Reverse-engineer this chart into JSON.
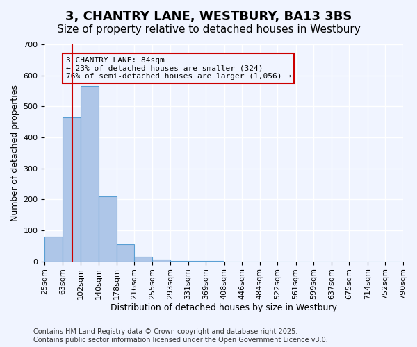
{
  "title": "3, CHANTRY LANE, WESTBURY, BA13 3BS",
  "subtitle": "Size of property relative to detached houses in Westbury",
  "xlabel": "Distribution of detached houses by size in Westbury",
  "ylabel": "Number of detached properties",
  "bar_color": "#aec6e8",
  "bar_edge_color": "#5a9fd4",
  "bin_edges": [
    25,
    63,
    102,
    140,
    178,
    216,
    255,
    293,
    331,
    369,
    408,
    446,
    484,
    522,
    561,
    599,
    637,
    675,
    714,
    752,
    790
  ],
  "bin_labels": [
    "25sqm",
    "63sqm",
    "102sqm",
    "140sqm",
    "178sqm",
    "216sqm",
    "255sqm",
    "293sqm",
    "331sqm",
    "369sqm",
    "408sqm",
    "446sqm",
    "484sqm",
    "522sqm",
    "561sqm",
    "599sqm",
    "637sqm",
    "675sqm",
    "714sqm",
    "752sqm",
    "790sqm"
  ],
  "bar_heights": [
    80,
    465,
    565,
    210,
    55,
    15,
    5,
    2,
    1,
    1,
    0,
    0,
    0,
    0,
    0,
    0,
    0,
    0,
    0,
    0
  ],
  "property_size": 84,
  "vline_color": "#cc0000",
  "annotation_text": "3 CHANTRY LANE: 84sqm\n← 23% of detached houses are smaller (324)\n76% of semi-detached houses are larger (1,056) →",
  "annotation_box_color": "#cc0000",
  "ylim": [
    0,
    700
  ],
  "yticks": [
    0,
    100,
    200,
    300,
    400,
    500,
    600,
    700
  ],
  "footer_text": "Contains HM Land Registry data © Crown copyright and database right 2025.\nContains public sector information licensed under the Open Government Licence v3.0.",
  "bg_color": "#f0f4ff",
  "grid_color": "#ffffff",
  "title_fontsize": 13,
  "subtitle_fontsize": 11,
  "axis_label_fontsize": 9,
  "tick_fontsize": 8,
  "annotation_fontsize": 8,
  "footer_fontsize": 7
}
